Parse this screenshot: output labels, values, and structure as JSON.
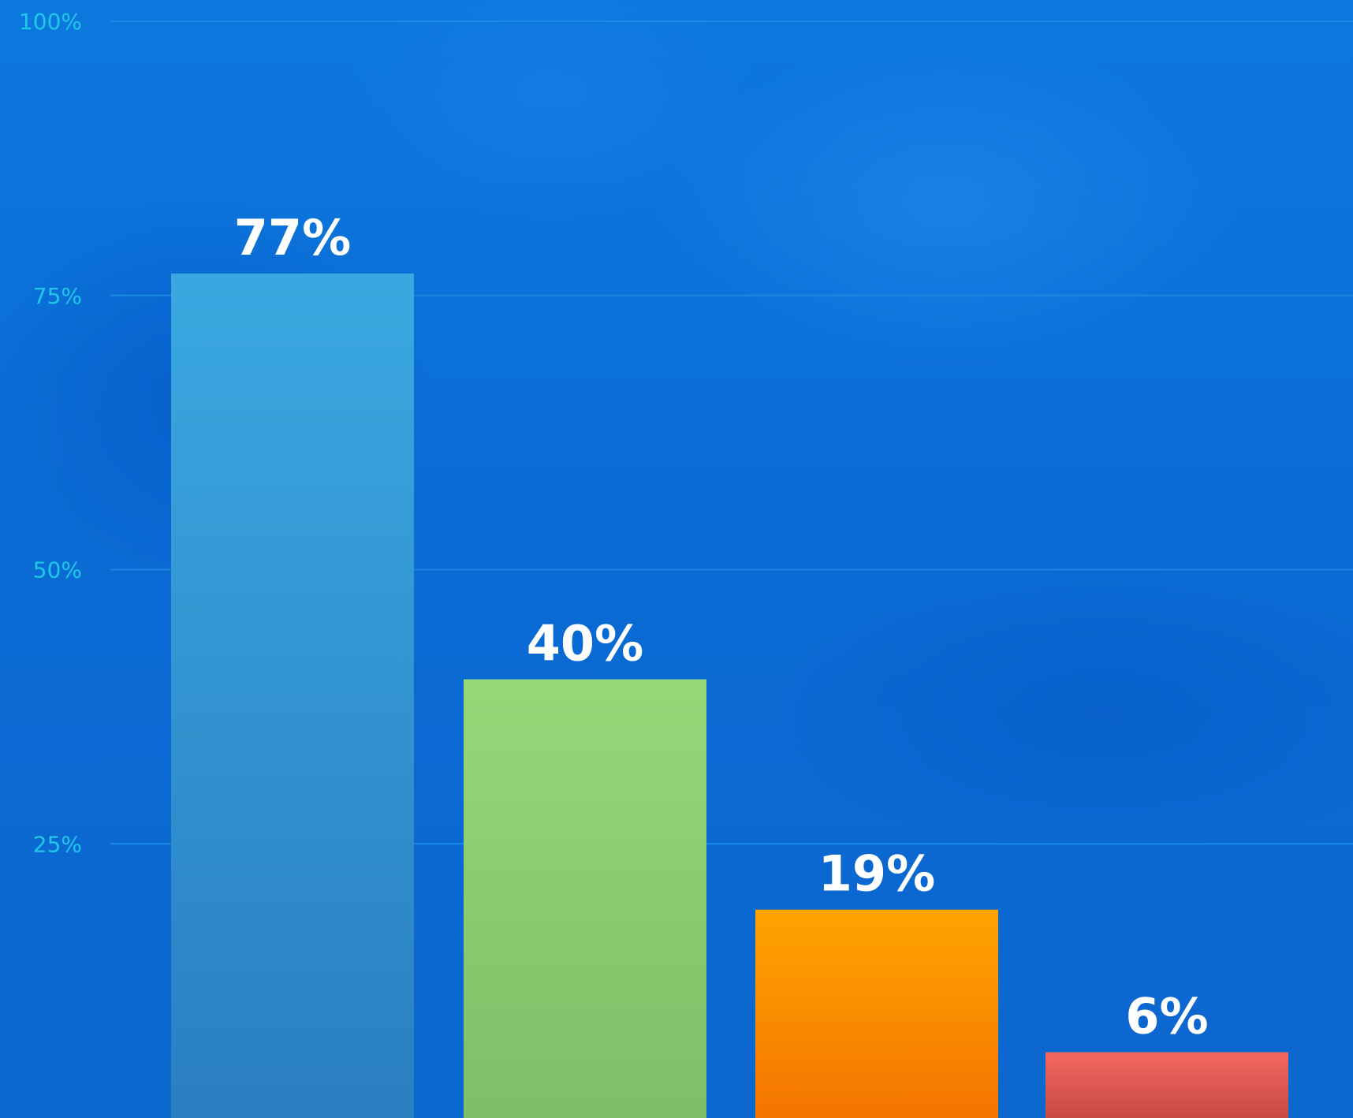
{
  "chart_data": {
    "type": "bar",
    "categories": [
      "",
      "",
      "",
      ""
    ],
    "values": [
      77,
      40,
      19,
      6
    ],
    "data_labels": [
      "77%",
      "40%",
      "19%",
      "6%"
    ],
    "title": "",
    "xlabel": "",
    "ylabel": "",
    "ylim": [
      0,
      100
    ],
    "yticks": [
      25,
      50,
      75,
      100
    ],
    "ytick_labels": [
      "25%",
      "50%",
      "75%",
      "100%"
    ],
    "grid": true,
    "bar_colors": [
      [
        "#3aa8e0",
        "#2a7fc0"
      ],
      [
        "#95d878",
        "#7fbe68"
      ],
      [
        "#ffa400",
        "#f47500"
      ],
      [
        "#f26860",
        "#c84a44"
      ]
    ]
  }
}
